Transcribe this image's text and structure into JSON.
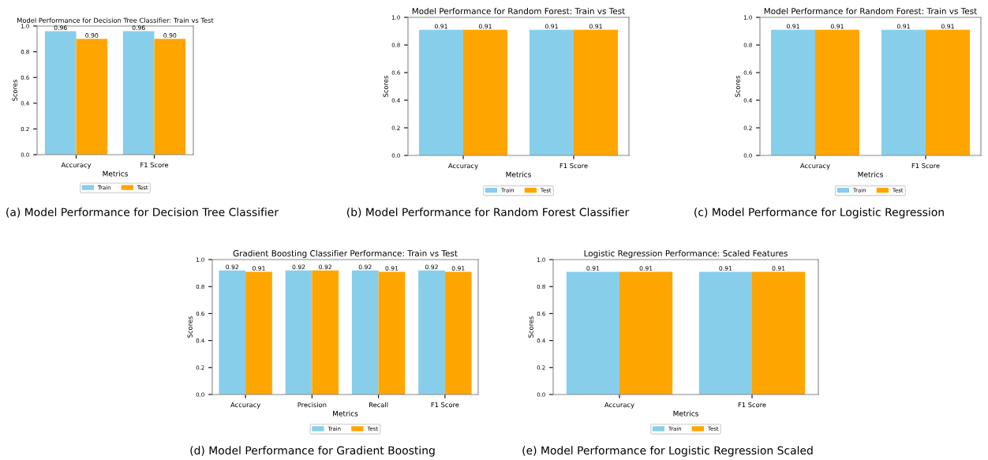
{
  "chart_data": [
    {
      "type": "bar",
      "title": "Model Performance for Decision Tree Classifier: Train vs Test",
      "xlabel": "Metrics",
      "ylabel": "Scores",
      "categories": [
        "Accuracy",
        "F1 Score"
      ],
      "series": [
        {
          "name": "Train",
          "color": "#87ceeb",
          "values": [
            0.96,
            0.96
          ],
          "value_labels": [
            "0.96",
            "0.96"
          ]
        },
        {
          "name": "Test",
          "color": "#ffa500",
          "values": [
            0.9,
            0.9
          ],
          "value_labels": [
            "0.90",
            "0.90"
          ]
        }
      ],
      "ylim": [
        0,
        1
      ],
      "yticks": [
        {
          "value": 0,
          "label": "0.0"
        },
        {
          "value": 0.2,
          "label": "0.2"
        },
        {
          "value": 0.4,
          "label": "0.4"
        },
        {
          "value": 0.6,
          "label": "0.6"
        },
        {
          "value": 0.8,
          "label": "0.8"
        },
        {
          "value": 1,
          "label": "1.0"
        }
      ],
      "legend": "bottom",
      "grid": false,
      "annotations": [
        "(a) Model Performance for Decision Tree Classifier"
      ]
    },
    {
      "type": "bar",
      "title": "Model Performance for Random Forest: Train vs Test",
      "xlabel": "Metrics",
      "ylabel": "Scores",
      "categories": [
        "Accuracy",
        "F1 Score"
      ],
      "series": [
        {
          "name": "Train",
          "color": "#87ceeb",
          "values": [
            0.91,
            0.91
          ],
          "value_labels": [
            "0.91",
            "0.91"
          ]
        },
        {
          "name": "Test",
          "color": "#ffa500",
          "values": [
            0.91,
            0.91
          ],
          "value_labels": [
            "0.91",
            "0.91"
          ]
        }
      ],
      "ylim": [
        0,
        1
      ],
      "yticks": [
        {
          "value": 0,
          "label": "0.0"
        },
        {
          "value": 0.2,
          "label": "0.2"
        },
        {
          "value": 0.4,
          "label": "0.4"
        },
        {
          "value": 0.6,
          "label": "0.6"
        },
        {
          "value": 0.8,
          "label": "0.8"
        },
        {
          "value": 1,
          "label": "1.0"
        }
      ],
      "legend": "bottom",
      "grid": false,
      "annotations": [
        "(b) Model Performance for Random Forest Classifier"
      ]
    },
    {
      "type": "bar",
      "title": "Model Performance for Random Forest: Train vs Test",
      "xlabel": "Metrics",
      "ylabel": "Scores",
      "categories": [
        "Accuracy",
        "F1 Score"
      ],
      "series": [
        {
          "name": "Train",
          "color": "#87ceeb",
          "values": [
            0.91,
            0.91
          ],
          "value_labels": [
            "0.91",
            "0.91"
          ]
        },
        {
          "name": "Test",
          "color": "#ffa500",
          "values": [
            0.91,
            0.91
          ],
          "value_labels": [
            "0.91",
            "0.91"
          ]
        }
      ],
      "ylim": [
        0,
        1
      ],
      "yticks": [
        {
          "value": 0,
          "label": "0.0"
        },
        {
          "value": 0.2,
          "label": "0.2"
        },
        {
          "value": 0.4,
          "label": "0.4"
        },
        {
          "value": 0.6,
          "label": "0.6"
        },
        {
          "value": 0.8,
          "label": "0.8"
        },
        {
          "value": 1,
          "label": "1.0"
        }
      ],
      "legend": "bottom",
      "grid": false,
      "annotations": [
        "(c) Model Performance for Logistic Regression"
      ]
    },
    {
      "type": "bar",
      "title": "Gradient Boosting Classifier Performance: Train vs Test",
      "xlabel": "Metrics",
      "ylabel": "Scores",
      "categories": [
        "Accuracy",
        "Precision",
        "Recall",
        "F1 Score"
      ],
      "series": [
        {
          "name": "Train",
          "color": "#87ceeb",
          "values": [
            0.92,
            0.92,
            0.92,
            0.92
          ],
          "value_labels": [
            "0.92",
            "0.92",
            "0.92",
            "0.92"
          ]
        },
        {
          "name": "Test",
          "color": "#ffa500",
          "values": [
            0.91,
            0.92,
            0.91,
            0.91
          ],
          "value_labels": [
            "0.91",
            "0.92",
            "0.91",
            "0.91"
          ]
        }
      ],
      "ylim": [
        0,
        1
      ],
      "yticks": [
        {
          "value": 0,
          "label": "0.0"
        },
        {
          "value": 0.2,
          "label": "0.2"
        },
        {
          "value": 0.4,
          "label": "0.4"
        },
        {
          "value": 0.6,
          "label": "0.6"
        },
        {
          "value": 0.8,
          "label": "0.8"
        },
        {
          "value": 1,
          "label": "1.0"
        }
      ],
      "legend": "bottom",
      "grid": false,
      "annotations": [
        "(d) Model Performance for Gradient Boosting"
      ]
    },
    {
      "type": "bar",
      "title": "Logistic Regression Performance: Scaled Features",
      "xlabel": "Metrics",
      "ylabel": "Scores",
      "categories": [
        "Accuracy",
        "F1 Score"
      ],
      "series": [
        {
          "name": "Train",
          "color": "#87ceeb",
          "values": [
            0.91,
            0.91
          ],
          "value_labels": [
            "0.91",
            "0.91"
          ]
        },
        {
          "name": "Test",
          "color": "#ffa500",
          "values": [
            0.91,
            0.91
          ],
          "value_labels": [
            "0.91",
            "0.91"
          ]
        }
      ],
      "ylim": [
        0,
        1
      ],
      "yticks": [
        {
          "value": 0,
          "label": "0.0"
        },
        {
          "value": 0.2,
          "label": "0.2"
        },
        {
          "value": 0.4,
          "label": "0.4"
        },
        {
          "value": 0.6,
          "label": "0.6"
        },
        {
          "value": 0.8,
          "label": "0.8"
        },
        {
          "value": 1,
          "label": "1.0"
        }
      ],
      "legend": "bottom",
      "grid": false,
      "annotations": [
        "(e) Model Performance for Logistic Regression Scaled"
      ]
    }
  ]
}
